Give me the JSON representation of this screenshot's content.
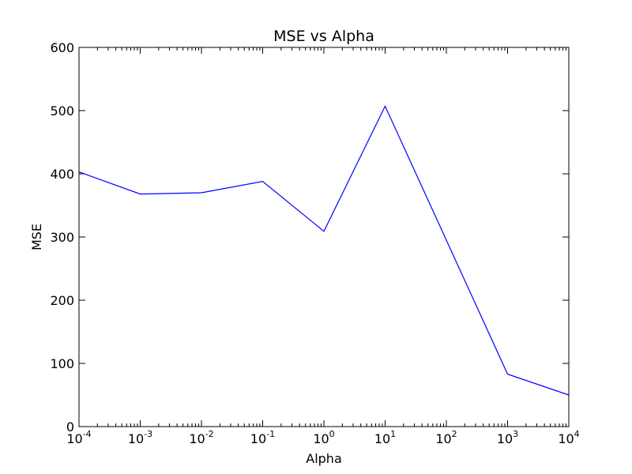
{
  "chart_data": {
    "type": "line",
    "title": "MSE vs Alpha",
    "xlabel": "Alpha",
    "ylabel": "MSE",
    "xscale": "log",
    "xlim": [
      0.0001,
      10000
    ],
    "ylim": [
      0,
      600
    ],
    "grid": false,
    "legend": "none",
    "x_ticks": [
      {
        "value": 0.0001,
        "base": "10",
        "exp": "-4"
      },
      {
        "value": 0.001,
        "base": "10",
        "exp": "-3"
      },
      {
        "value": 0.01,
        "base": "10",
        "exp": "-2"
      },
      {
        "value": 0.1,
        "base": "10",
        "exp": "-1"
      },
      {
        "value": 1,
        "base": "10",
        "exp": "0"
      },
      {
        "value": 10,
        "base": "10",
        "exp": "1"
      },
      {
        "value": 100,
        "base": "10",
        "exp": "2"
      },
      {
        "value": 1000,
        "base": "10",
        "exp": "3"
      },
      {
        "value": 10000,
        "base": "10",
        "exp": "4"
      }
    ],
    "y_ticks": [
      0,
      100,
      200,
      300,
      400,
      500,
      600
    ],
    "series": [
      {
        "color": "#0000ff",
        "x": [
          0.0001,
          0.001,
          0.01,
          0.1,
          1,
          10,
          1000,
          10000
        ],
        "y": [
          403,
          368,
          370,
          388,
          309,
          507,
          83,
          50
        ]
      }
    ]
  }
}
